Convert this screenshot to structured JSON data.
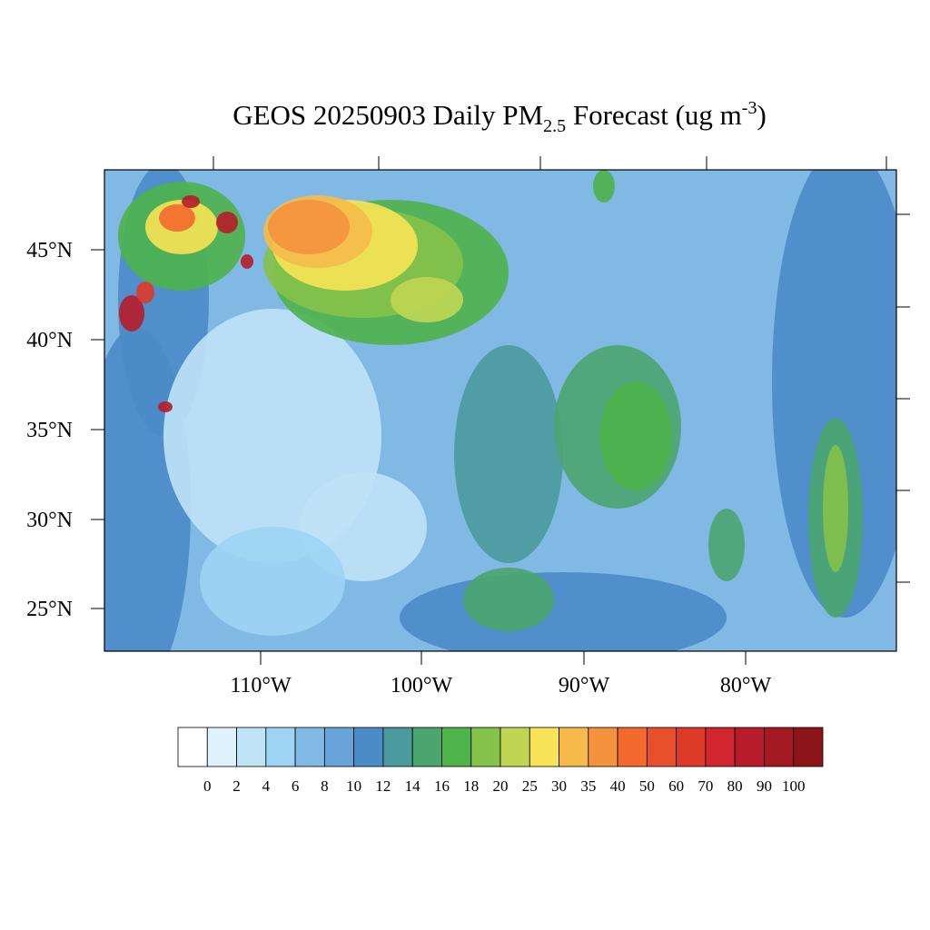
{
  "title": {
    "main": "GEOS 20250903 Daily PM",
    "sub": "2.5",
    "rest": " Forecast (ug m",
    "sup": "-3",
    "end": ")"
  },
  "map": {
    "lat_labels": [
      "45°N",
      "40°N",
      "35°N",
      "30°N",
      "25°N"
    ],
    "lon_labels": [
      "110°W",
      "100°W",
      "90°W",
      "80°W"
    ]
  },
  "colorbar": {
    "colors": [
      "#ffffff",
      "#dff1fa",
      "#bfe3f7",
      "#9dd4f3",
      "#80bae4",
      "#68a4d9",
      "#4a8bc8",
      "#4a9a9e",
      "#4aa56f",
      "#4db34a",
      "#85c24a",
      "#c0d653",
      "#f7e457",
      "#f6bb4a",
      "#f5923d",
      "#f36a2f",
      "#e8502c",
      "#dd3a2a",
      "#d12630",
      "#b71c2a",
      "#a51a22",
      "#8c1519"
    ],
    "labels": [
      0,
      2,
      4,
      6,
      8,
      10,
      12,
      14,
      16,
      18,
      20,
      25,
      30,
      35,
      40,
      50,
      60,
      70,
      80,
      90,
      100
    ]
  }
}
